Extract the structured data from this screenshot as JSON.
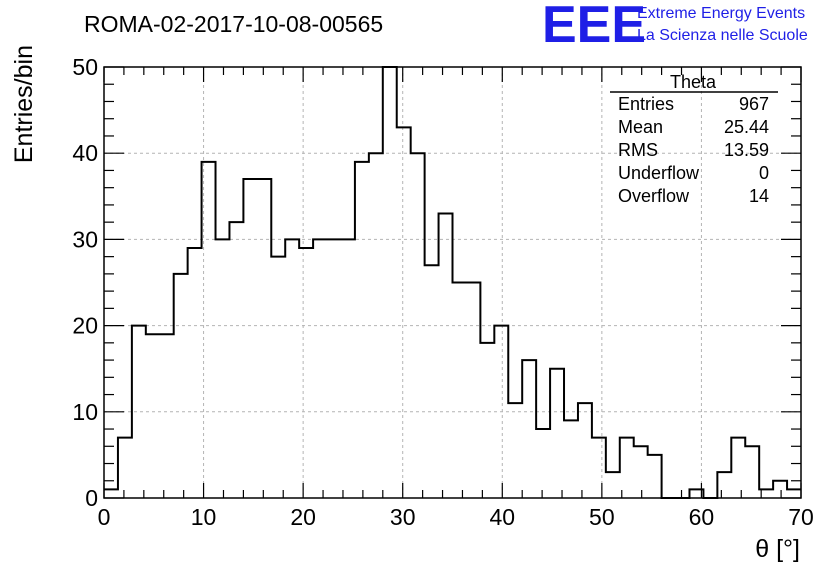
{
  "header": {
    "run_title": "ROMA-02-2017-10-08-00565",
    "logo_text": "EEE",
    "brand_line1": "Extreme Energy Events",
    "brand_line2": "La Scienza nelle Scuole",
    "brand_color": "#1f1fe6"
  },
  "stats": {
    "title": "Theta",
    "rows": [
      {
        "label": "Entries",
        "value": "967"
      },
      {
        "label": "Mean",
        "value": "25.44"
      },
      {
        "label": "RMS",
        "value": "13.59"
      },
      {
        "label": "Underflow",
        "value": "0"
      },
      {
        "label": "Overflow",
        "value": "14"
      }
    ]
  },
  "chart_data": {
    "type": "histogram",
    "xlabel": "θ [°]",
    "ylabel": "Entries/bin",
    "xlim": [
      0,
      70
    ],
    "ylim": [
      0,
      50
    ],
    "x_ticks": [
      0,
      10,
      20,
      30,
      40,
      50,
      60,
      70
    ],
    "y_ticks": [
      0,
      10,
      20,
      30,
      40,
      50
    ],
    "grid": true,
    "bin_edges_start": 0,
    "bin_width": 1.4,
    "values": [
      1,
      7,
      20,
      19,
      19,
      26,
      29,
      39,
      30,
      32,
      37,
      37,
      28,
      30,
      29,
      30,
      30,
      30,
      39,
      40,
      50,
      43,
      40,
      27,
      33,
      25,
      25,
      18,
      20,
      11,
      16,
      8,
      15,
      9,
      11,
      7,
      3,
      7,
      6,
      5,
      0,
      0,
      1,
      0,
      3,
      7,
      6,
      1,
      2,
      1
    ]
  }
}
